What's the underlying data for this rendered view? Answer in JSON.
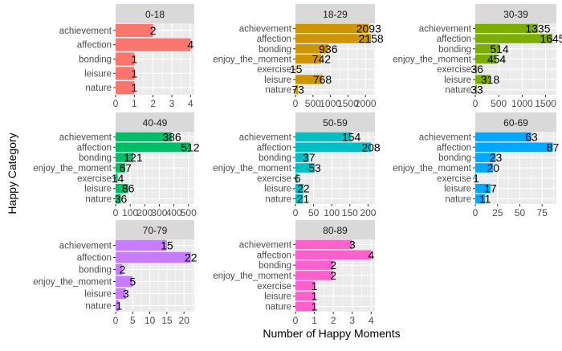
{
  "chart_data": {
    "type": "bar",
    "orientation": "horizontal",
    "faceted": true,
    "xlabel": "Number of Happy Moments",
    "ylabel": "Happy Category",
    "legend": "none",
    "grid": true,
    "facets": [
      {
        "title": "0-18",
        "color": "#F8766D",
        "categories": [
          "achievement",
          "affection",
          "bonding",
          "leisure",
          "nature"
        ],
        "values": [
          2,
          4,
          1,
          1,
          1
        ],
        "xlim": [
          0,
          4.2
        ],
        "xticks": [
          0,
          1,
          2,
          3,
          4
        ]
      },
      {
        "title": "18-29",
        "color": "#CD9600",
        "categories": [
          "achievement",
          "affection",
          "bonding",
          "enjoy_the_moment",
          "exercise",
          "leisure",
          "nature"
        ],
        "values": [
          2093,
          2158,
          936,
          742,
          15,
          768,
          73
        ],
        "xlim": [
          0,
          2270
        ],
        "xticks": [
          0,
          500,
          1000,
          1500,
          2000
        ]
      },
      {
        "title": "30-39",
        "color": "#7CAE00",
        "categories": [
          "achievement",
          "affection",
          "bonding",
          "enjoy_the_moment",
          "exercise",
          "leisure",
          "nature"
        ],
        "values": [
          1335,
          1645,
          514,
          454,
          36,
          318,
          33
        ],
        "xlim": [
          0,
          1730
        ],
        "xticks": [
          0,
          500,
          1000,
          1500
        ]
      },
      {
        "title": "40-49",
        "color": "#00BE67",
        "categories": [
          "achievement",
          "affection",
          "bonding",
          "enjoy_the_moment",
          "exercise",
          "leisure",
          "nature"
        ],
        "values": [
          386,
          512,
          121,
          67,
          14,
          86,
          36
        ],
        "xlim": [
          0,
          540
        ],
        "xticks": [
          0,
          100,
          200,
          300,
          400,
          500
        ]
      },
      {
        "title": "50-59",
        "color": "#00BFC4",
        "categories": [
          "achievement",
          "affection",
          "bonding",
          "enjoy_the_moment",
          "exercise",
          "leisure",
          "nature"
        ],
        "values": [
          154,
          208,
          37,
          53,
          6,
          22,
          21
        ],
        "xlim": [
          0,
          219
        ],
        "xticks": [
          0,
          50,
          100,
          150,
          200
        ]
      },
      {
        "title": "60-69",
        "color": "#00A9FF",
        "categories": [
          "achievement",
          "affection",
          "bonding",
          "enjoy_the_moment",
          "exercise",
          "leisure",
          "nature"
        ],
        "values": [
          63,
          87,
          23,
          20,
          1,
          17,
          11
        ],
        "xlim": [
          0,
          91
        ],
        "xticks": [
          0,
          25,
          50,
          75
        ]
      },
      {
        "title": "70-79",
        "color": "#C77CFF",
        "categories": [
          "achievement",
          "affection",
          "bonding",
          "enjoy_the_moment",
          "leisure",
          "nature"
        ],
        "values": [
          15,
          22,
          2,
          5,
          3,
          1
        ],
        "xlim": [
          0,
          23
        ],
        "xticks": [
          0,
          5,
          10,
          15,
          20
        ]
      },
      {
        "title": "80-89",
        "color": "#FF61CC",
        "categories": [
          "achievement",
          "affection",
          "bonding",
          "enjoy_the_moment",
          "exercise",
          "leisure",
          "nature"
        ],
        "values": [
          3,
          4,
          2,
          2,
          1,
          1,
          1
        ],
        "xlim": [
          0,
          4.2
        ],
        "xticks": [
          0,
          1,
          2,
          3,
          4
        ]
      }
    ]
  }
}
